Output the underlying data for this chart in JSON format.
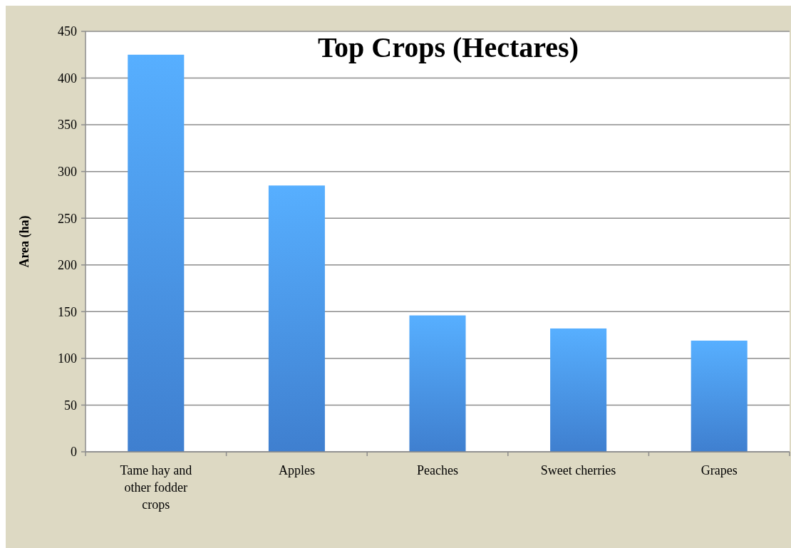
{
  "chart_data": {
    "type": "bar",
    "title": "Top Crops (Hectares)",
    "ylabel": "Area (ha)",
    "categories": [
      "Tame hay and other fodder crops",
      "Apples",
      "Peaches",
      "Sweet cherries",
      "Grapes"
    ],
    "values": [
      425,
      285,
      146,
      132,
      119
    ],
    "color": "#3f7fcf",
    "ylim": [
      0,
      450
    ],
    "yticks": [
      0,
      50,
      100,
      150,
      200,
      250,
      300,
      350,
      400,
      450
    ],
    "grid": "y"
  }
}
